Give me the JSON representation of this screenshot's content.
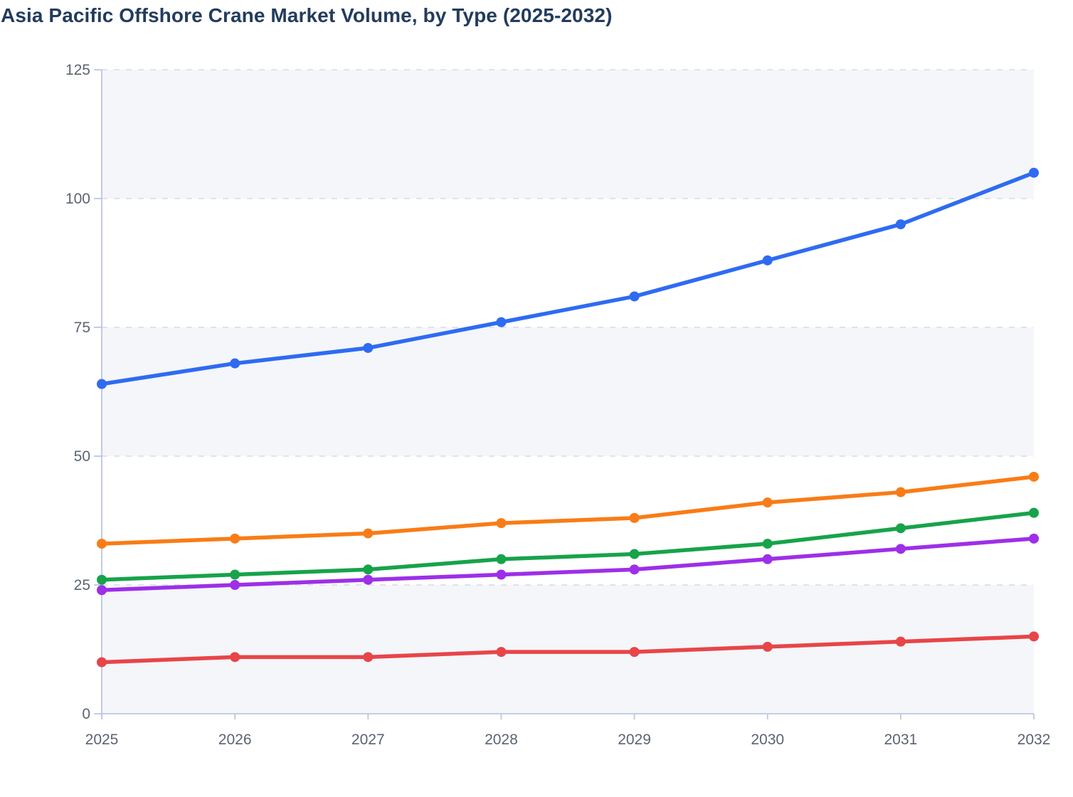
{
  "title": "Asia Pacific Offshore Crane Market Volume, by Type (2025-2032)",
  "chart_data": {
    "type": "line",
    "title": "Asia Pacific Offshore Crane Market Volume, by Type (2025-2032)",
    "xlabel": "",
    "ylabel": "",
    "x": [
      2025,
      2026,
      2027,
      2028,
      2029,
      2030,
      2031,
      2032
    ],
    "series": [
      {
        "name": "blue-series",
        "color": "#2e6bf2",
        "values": [
          64,
          68,
          71,
          76,
          81,
          88,
          95,
          105
        ]
      },
      {
        "name": "orange-series",
        "color": "#f97c16",
        "values": [
          33,
          34,
          35,
          37,
          38,
          41,
          43,
          46
        ]
      },
      {
        "name": "green-series",
        "color": "#17a34a",
        "values": [
          26,
          27,
          28,
          30,
          31,
          33,
          36,
          39
        ]
      },
      {
        "name": "purple-series",
        "color": "#9d2fe8",
        "values": [
          24,
          25,
          26,
          27,
          28,
          30,
          32,
          34
        ]
      },
      {
        "name": "red-series",
        "color": "#e84548",
        "values": [
          10,
          11,
          11,
          12,
          12,
          13,
          14,
          15
        ]
      }
    ],
    "ylim": [
      0,
      125
    ],
    "yticks": [
      0,
      25,
      50,
      75,
      100,
      125
    ],
    "x_tick_labels": [
      "2025",
      "2026",
      "2027",
      "2028",
      "2029",
      "2030",
      "2031",
      "2032"
    ],
    "y_tick_labels": [
      "0",
      "25",
      "50",
      "75",
      "100",
      "125"
    ],
    "grid": "horizontal-dashed",
    "row_banding": "alternate shaded bands between gridlines, top band shaded",
    "legend": "none"
  },
  "style": {
    "title_color": "#233c5d",
    "axis_line_color": "#bcc6e6",
    "gridline_color": "#d7dbe4",
    "band_fill_color": "#f4f6fa",
    "tick_label_color": "#5b6472",
    "background_color": "#ffffff"
  }
}
